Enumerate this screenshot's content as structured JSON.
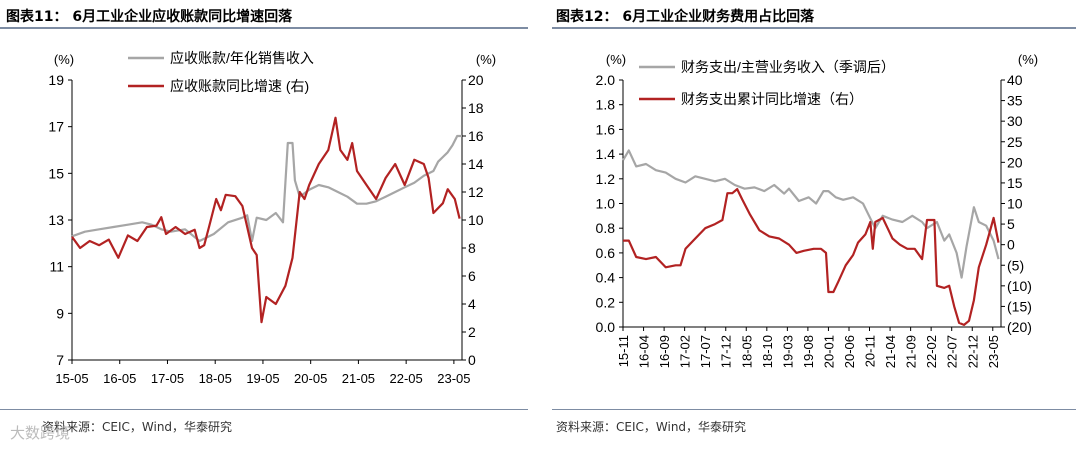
{
  "charts_header": {
    "left_title": "图表11： 6月工业企业应收账款同比增速回落",
    "right_title": "图表12： 6月工业企业财务费用占比回落",
    "left_source": "资料来源：CEIC，Wind，华泰研究",
    "right_source": "资料来源：CEIC，Wind，华泰研究",
    "watermark": "大数跨境"
  },
  "colors": {
    "gray": "#a6a6a6",
    "red": "#b22222",
    "axis": "#000000"
  },
  "chart_data": [
    {
      "type": "line",
      "title": "图表11： 6月工业企业应收账款同比增速回落",
      "left_unit": "(%)",
      "right_unit": "(%)",
      "left_ylim": [
        7,
        19
      ],
      "left_ticks": [
        "7",
        "9",
        "11",
        "13",
        "15",
        "17",
        "19"
      ],
      "right_ylim": [
        0,
        20
      ],
      "right_ticks": [
        "0",
        "2",
        "4",
        "6",
        "8",
        "10",
        "12",
        "14",
        "16",
        "18",
        "20"
      ],
      "x_start": 2015.33,
      "x_end": 2023.5,
      "x_ticks": [
        {
          "label": "15-05",
          "x": 2015.33
        },
        {
          "label": "16-05",
          "x": 2016.33
        },
        {
          "label": "17-05",
          "x": 2017.33
        },
        {
          "label": "18-05",
          "x": 2018.33
        },
        {
          "label": "19-05",
          "x": 2019.33
        },
        {
          "label": "20-05",
          "x": 2020.33
        },
        {
          "label": "21-05",
          "x": 2021.33
        },
        {
          "label": "22-05",
          "x": 2022.33
        },
        {
          "label": "23-05",
          "x": 2023.33
        }
      ],
      "series": [
        {
          "name": "应收账款/年化销售收入",
          "axis": "left",
          "color": "gray",
          "points": [
            [
              2015.33,
              12.3
            ],
            [
              2015.6,
              12.5
            ],
            [
              2015.9,
              12.6
            ],
            [
              2016.2,
              12.7
            ],
            [
              2016.5,
              12.8
            ],
            [
              2016.8,
              12.9
            ],
            [
              2017.0,
              12.8
            ],
            [
              2017.2,
              12.6
            ],
            [
              2017.4,
              12.5
            ],
            [
              2017.7,
              12.6
            ],
            [
              2018.0,
              12.1
            ],
            [
              2018.3,
              12.4
            ],
            [
              2018.6,
              12.9
            ],
            [
              2018.9,
              13.1
            ],
            [
              2019.0,
              13.2
            ],
            [
              2019.1,
              12.1
            ],
            [
              2019.2,
              13.1
            ],
            [
              2019.4,
              13.0
            ],
            [
              2019.6,
              13.3
            ],
            [
              2019.75,
              12.9
            ],
            [
              2019.85,
              16.3
            ],
            [
              2019.95,
              16.3
            ],
            [
              2020.0,
              14.7
            ],
            [
              2020.1,
              14.0
            ],
            [
              2020.3,
              14.3
            ],
            [
              2020.5,
              14.5
            ],
            [
              2020.7,
              14.4
            ],
            [
              2020.9,
              14.2
            ],
            [
              2021.1,
              14.0
            ],
            [
              2021.3,
              13.7
            ],
            [
              2021.5,
              13.7
            ],
            [
              2021.7,
              13.8
            ],
            [
              2021.9,
              14.0
            ],
            [
              2022.1,
              14.2
            ],
            [
              2022.3,
              14.4
            ],
            [
              2022.5,
              14.6
            ],
            [
              2022.7,
              14.9
            ],
            [
              2022.9,
              15.1
            ],
            [
              2023.0,
              15.5
            ],
            [
              2023.1,
              15.7
            ],
            [
              2023.2,
              15.9
            ],
            [
              2023.3,
              16.2
            ],
            [
              2023.4,
              16.6
            ],
            [
              2023.5,
              16.6
            ]
          ]
        },
        {
          "name": "应收账款同比增速 (右)",
          "axis": "right",
          "color": "red",
          "points": [
            [
              2015.33,
              8.8
            ],
            [
              2015.5,
              8.0
            ],
            [
              2015.7,
              8.5
            ],
            [
              2015.9,
              8.2
            ],
            [
              2016.1,
              8.6
            ],
            [
              2016.3,
              7.3
            ],
            [
              2016.5,
              8.9
            ],
            [
              2016.7,
              8.5
            ],
            [
              2016.9,
              9.5
            ],
            [
              2017.1,
              9.6
            ],
            [
              2017.2,
              10.2
            ],
            [
              2017.3,
              9.0
            ],
            [
              2017.5,
              9.5
            ],
            [
              2017.7,
              9.0
            ],
            [
              2017.9,
              9.3
            ],
            [
              2018.0,
              8.0
            ],
            [
              2018.1,
              8.2
            ],
            [
              2018.2,
              9.5
            ],
            [
              2018.35,
              11.5
            ],
            [
              2018.45,
              10.7
            ],
            [
              2018.55,
              11.8
            ],
            [
              2018.75,
              11.7
            ],
            [
              2018.9,
              11.0
            ],
            [
              2019.0,
              9.5
            ],
            [
              2019.1,
              8.0
            ],
            [
              2019.2,
              7.5
            ],
            [
              2019.3,
              2.7
            ],
            [
              2019.4,
              4.5
            ],
            [
              2019.6,
              4.0
            ],
            [
              2019.8,
              5.3
            ],
            [
              2019.95,
              7.3
            ],
            [
              2020.1,
              12.0
            ],
            [
              2020.2,
              11.5
            ],
            [
              2020.3,
              12.5
            ],
            [
              2020.5,
              14.0
            ],
            [
              2020.7,
              15.0
            ],
            [
              2020.85,
              17.3
            ],
            [
              2020.95,
              15.0
            ],
            [
              2021.1,
              14.3
            ],
            [
              2021.2,
              15.5
            ],
            [
              2021.3,
              13.5
            ],
            [
              2021.5,
              12.5
            ],
            [
              2021.7,
              11.5
            ],
            [
              2021.9,
              13.0
            ],
            [
              2022.1,
              14.0
            ],
            [
              2022.3,
              12.5
            ],
            [
              2022.5,
              14.3
            ],
            [
              2022.7,
              14.0
            ],
            [
              2022.8,
              13.0
            ],
            [
              2022.9,
              10.5
            ],
            [
              2023.1,
              11.2
            ],
            [
              2023.2,
              12.2
            ],
            [
              2023.35,
              11.5
            ],
            [
              2023.45,
              10.1
            ]
          ]
        }
      ]
    },
    {
      "type": "line",
      "title": "图表12： 6月工业企业财务费用占比回落",
      "left_unit": "(%)",
      "right_unit": "(%)",
      "left_ylim": [
        0,
        2
      ],
      "left_ticks": [
        "0.0",
        "0.2",
        "0.4",
        "0.6",
        "0.8",
        "1.0",
        "1.2",
        "1.4",
        "1.6",
        "1.8",
        "2.0"
      ],
      "right_ylim": [
        -20,
        40
      ],
      "right_ticks": [
        "(20)",
        "(15)",
        "(10)",
        "(5)",
        "0",
        "5",
        "10",
        "15",
        "20",
        "25",
        "30",
        "35",
        "40"
      ],
      "x_start": 2015.833,
      "x_end": 2023.5,
      "x_ticks": [
        {
          "label": "15-11",
          "x": 2015.833
        },
        {
          "label": "16-04",
          "x": 2016.25
        },
        {
          "label": "16-09",
          "x": 2016.667
        },
        {
          "label": "17-02",
          "x": 2017.083
        },
        {
          "label": "17-07",
          "x": 2017.5
        },
        {
          "label": "17-12",
          "x": 2017.917
        },
        {
          "label": "18-05",
          "x": 2018.333
        },
        {
          "label": "18-10",
          "x": 2018.75
        },
        {
          "label": "19-03",
          "x": 2019.167
        },
        {
          "label": "19-08",
          "x": 2019.583
        },
        {
          "label": "20-01",
          "x": 2020.0
        },
        {
          "label": "20-06",
          "x": 2020.417
        },
        {
          "label": "20-11",
          "x": 2020.833
        },
        {
          "label": "21-04",
          "x": 2021.25
        },
        {
          "label": "21-09",
          "x": 2021.667
        },
        {
          "label": "22-02",
          "x": 2022.083
        },
        {
          "label": "22-07",
          "x": 2022.5
        },
        {
          "label": "22-12",
          "x": 2022.917
        },
        {
          "label": "23-05",
          "x": 2023.333
        }
      ],
      "series": [
        {
          "name": "财务支出/主营业务收入（季调后）",
          "axis": "left",
          "color": "gray",
          "points": [
            [
              2015.833,
              1.35
            ],
            [
              2015.95,
              1.43
            ],
            [
              2016.1,
              1.3
            ],
            [
              2016.3,
              1.32
            ],
            [
              2016.5,
              1.27
            ],
            [
              2016.7,
              1.25
            ],
            [
              2016.9,
              1.2
            ],
            [
              2017.1,
              1.17
            ],
            [
              2017.3,
              1.22
            ],
            [
              2017.5,
              1.2
            ],
            [
              2017.7,
              1.18
            ],
            [
              2017.9,
              1.2
            ],
            [
              2018.1,
              1.15
            ],
            [
              2018.3,
              1.12
            ],
            [
              2018.5,
              1.13
            ],
            [
              2018.7,
              1.1
            ],
            [
              2018.9,
              1.15
            ],
            [
              2019.1,
              1.08
            ],
            [
              2019.2,
              1.12
            ],
            [
              2019.4,
              1.02
            ],
            [
              2019.6,
              1.05
            ],
            [
              2019.75,
              1.0
            ],
            [
              2019.9,
              1.1
            ],
            [
              2020.0,
              1.1
            ],
            [
              2020.15,
              1.05
            ],
            [
              2020.3,
              1.03
            ],
            [
              2020.5,
              1.05
            ],
            [
              2020.7,
              1.0
            ],
            [
              2020.85,
              0.88
            ],
            [
              2020.95,
              0.8
            ],
            [
              2021.1,
              0.9
            ],
            [
              2021.3,
              0.87
            ],
            [
              2021.5,
              0.85
            ],
            [
              2021.7,
              0.9
            ],
            [
              2021.9,
              0.85
            ],
            [
              2022.0,
              0.8
            ],
            [
              2022.2,
              0.85
            ],
            [
              2022.35,
              0.7
            ],
            [
              2022.45,
              0.75
            ],
            [
              2022.6,
              0.6
            ],
            [
              2022.7,
              0.4
            ],
            [
              2022.8,
              0.65
            ],
            [
              2022.95,
              0.97
            ],
            [
              2023.05,
              0.85
            ],
            [
              2023.2,
              0.82
            ],
            [
              2023.35,
              0.7
            ],
            [
              2023.45,
              0.55
            ]
          ]
        },
        {
          "name": "财务支出累计同比增速（右）",
          "axis": "right",
          "color": "red",
          "points": [
            [
              2015.833,
              1.0
            ],
            [
              2015.95,
              1.0
            ],
            [
              2016.1,
              -3.0
            ],
            [
              2016.3,
              -3.5
            ],
            [
              2016.5,
              -3.0
            ],
            [
              2016.7,
              -5.5
            ],
            [
              2016.9,
              -5.0
            ],
            [
              2017.0,
              -5.0
            ],
            [
              2017.1,
              -1.0
            ],
            [
              2017.3,
              1.5
            ],
            [
              2017.5,
              4.0
            ],
            [
              2017.7,
              5.0
            ],
            [
              2017.85,
              6.0
            ],
            [
              2017.95,
              12.5
            ],
            [
              2018.05,
              12.5
            ],
            [
              2018.15,
              13.5
            ],
            [
              2018.25,
              11.0
            ],
            [
              2018.4,
              7.5
            ],
            [
              2018.6,
              3.5
            ],
            [
              2018.8,
              2.0
            ],
            [
              2019.0,
              1.5
            ],
            [
              2019.2,
              0.0
            ],
            [
              2019.35,
              -2.0
            ],
            [
              2019.5,
              -1.5
            ],
            [
              2019.7,
              -1.0
            ],
            [
              2019.85,
              -1.0
            ],
            [
              2019.95,
              -2.0
            ],
            [
              2020.0,
              -11.5
            ],
            [
              2020.1,
              -11.5
            ],
            [
              2020.2,
              -9.0
            ],
            [
              2020.35,
              -5.0
            ],
            [
              2020.5,
              -2.5
            ],
            [
              2020.6,
              0.5
            ],
            [
              2020.75,
              2.5
            ],
            [
              2020.85,
              5.5
            ],
            [
              2020.9,
              -1.0
            ],
            [
              2020.95,
              5.5
            ],
            [
              2021.1,
              6.5
            ],
            [
              2021.2,
              4.0
            ],
            [
              2021.3,
              1.5
            ],
            [
              2021.45,
              0.0
            ],
            [
              2021.6,
              -1.0
            ],
            [
              2021.75,
              -1.0
            ],
            [
              2021.9,
              -3.5
            ],
            [
              2022.0,
              6.0
            ],
            [
              2022.1,
              6.0
            ],
            [
              2022.15,
              6.0
            ],
            [
              2022.2,
              -10.0
            ],
            [
              2022.35,
              -10.5
            ],
            [
              2022.45,
              -10.0
            ],
            [
              2022.55,
              -15.0
            ],
            [
              2022.65,
              -19.0
            ],
            [
              2022.75,
              -19.5
            ],
            [
              2022.85,
              -18.5
            ],
            [
              2022.95,
              -13.5
            ],
            [
              2023.05,
              -5.5
            ],
            [
              2023.2,
              0.0
            ],
            [
              2023.35,
              6.5
            ],
            [
              2023.45,
              0.5
            ]
          ]
        }
      ]
    }
  ]
}
